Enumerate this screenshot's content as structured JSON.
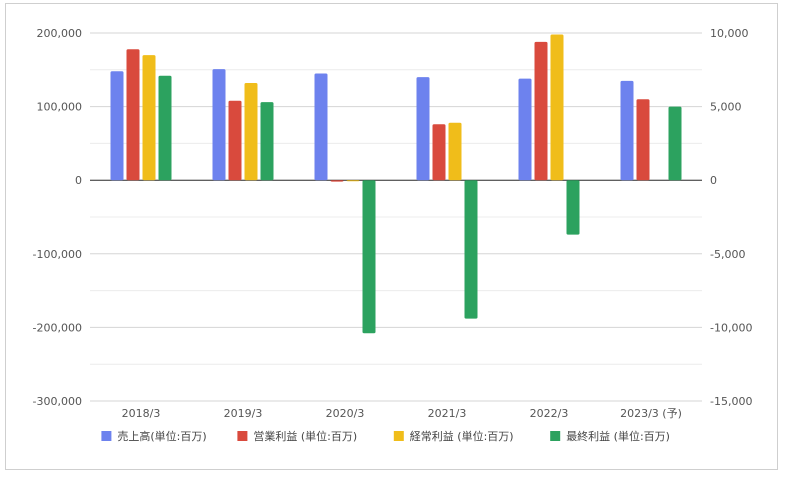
{
  "chart_data": {
    "type": "bar",
    "categories": [
      "2018/3",
      "2019/3",
      "2020/3",
      "2021/3",
      "2022/3",
      "2023/3 (予)"
    ],
    "series": [
      {
        "name": "売上高(単位:百万)",
        "axis": "left",
        "color": "#6d82ee",
        "values": [
          148000,
          151000,
          145000,
          140000,
          138000,
          135000
        ]
      },
      {
        "name": "営業利益 (単位:百万)",
        "axis": "right",
        "color": "#d94a3d",
        "values": [
          8900,
          5400,
          -100,
          3800,
          9400,
          5500
        ]
      },
      {
        "name": "経常利益 (単位:百万)",
        "axis": "right",
        "color": "#f0bd1a",
        "values": [
          8500,
          6600,
          0,
          3900,
          9900,
          null
        ]
      },
      {
        "name": "最終利益 (単位:百万)",
        "axis": "right",
        "color": "#2ca25f",
        "values": [
          7100,
          5300,
          -10400,
          -9400,
          -3700,
          5000
        ]
      }
    ],
    "y_left": {
      "min": -300000,
      "max": 200000,
      "ticks": [
        "200,000",
        "100,000",
        "0",
        "-100,000",
        "-200,000",
        "-300,000"
      ]
    },
    "y_right": {
      "min": -15000,
      "max": 10000,
      "ticks": [
        "10,000",
        "5,000",
        "0",
        "-5,000",
        "-10,000",
        "-15,000"
      ]
    },
    "grid": true,
    "legend_position": "bottom"
  }
}
